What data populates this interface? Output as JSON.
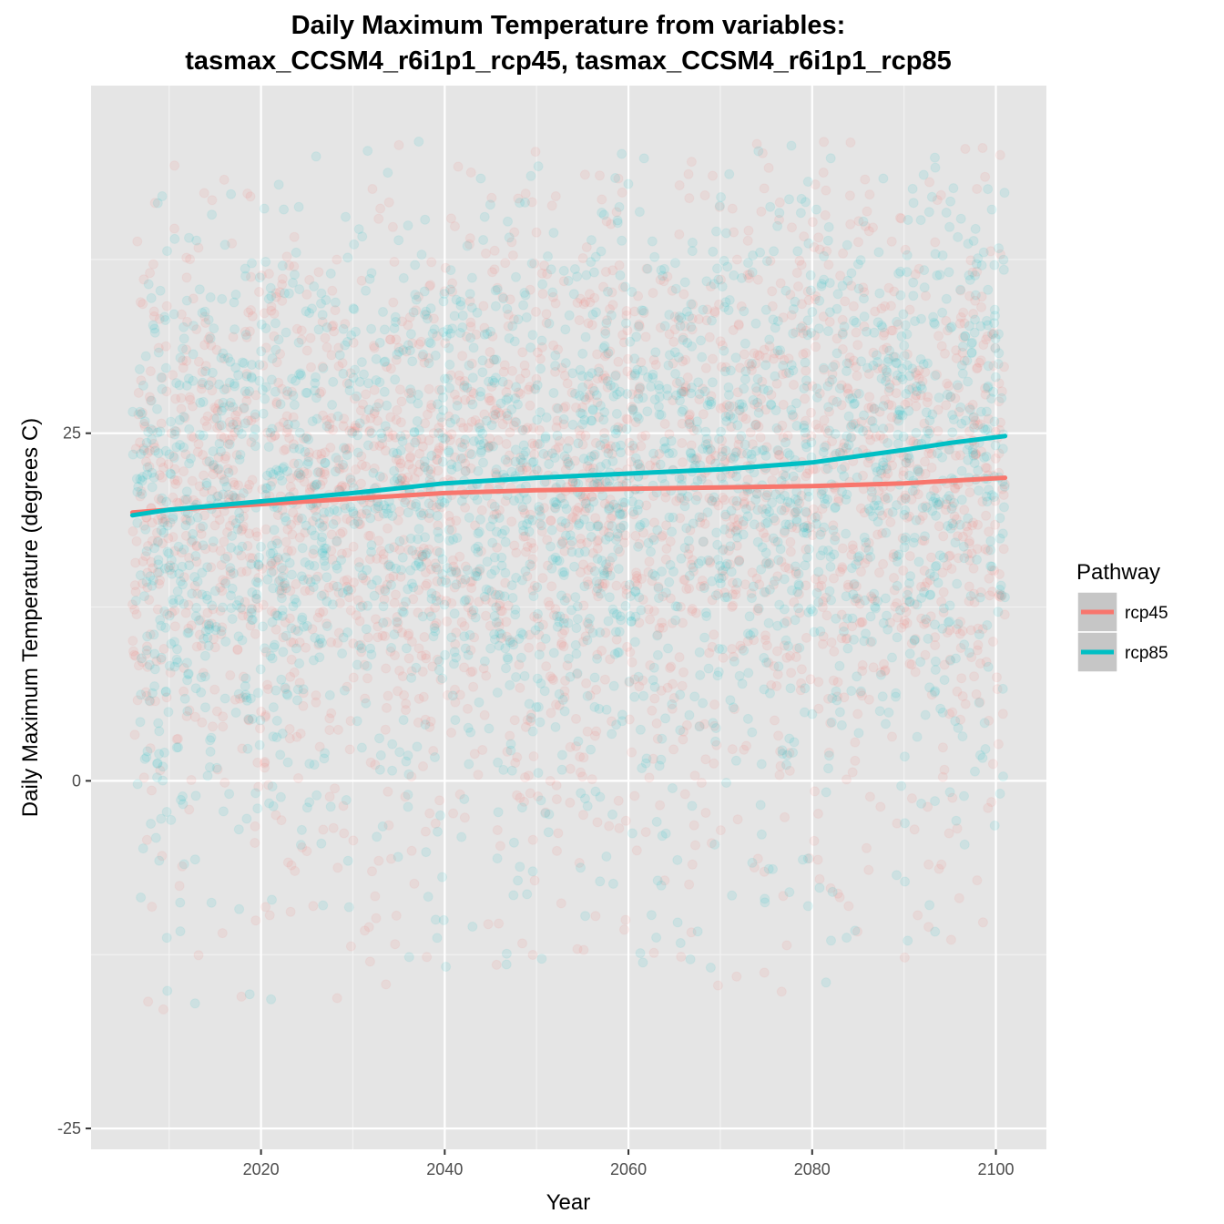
{
  "chart_data": {
    "type": "scatter",
    "title_lines": [
      "Daily Maximum Temperature from variables:",
      "tasmax_CCSM4_r6i1p1_rcp45, tasmax_CCSM4_r6i1p1_rcp85"
    ],
    "xlabel": "Year",
    "ylabel": "Daily Maximum Temperature (degrees C)",
    "xlim": [
      2001.5,
      2105.5
    ],
    "ylim": [
      -26.5,
      50
    ],
    "x_ticks": [
      2020,
      2040,
      2060,
      2080,
      2100
    ],
    "x_tick_labels": [
      "2020",
      "2040",
      "2060",
      "2080",
      "2100"
    ],
    "y_ticks": [
      -25,
      0,
      25
    ],
    "y_tick_labels": [
      "-25",
      "0",
      "25"
    ],
    "grid": true,
    "background": "#e5e5e5",
    "point_alpha": 0.1,
    "points_note": "one dot per day per pathway, years 2006-2100, values roughly between -22 and 46 degrees C",
    "point_range": {
      "x": [
        2006,
        2101
      ],
      "y": [
        -22,
        46
      ]
    },
    "legend": {
      "title": "Pathway",
      "position": "right",
      "entries": [
        {
          "label": "rcp45",
          "color": "#f8766d"
        },
        {
          "label": "rcp85",
          "color": "#00bfc4"
        }
      ]
    },
    "series": [
      {
        "name": "rcp45",
        "color": "#f8766d",
        "smooth_line": {
          "x": [
            2006,
            2010,
            2020,
            2030,
            2040,
            2050,
            2060,
            2070,
            2080,
            2090,
            2101
          ],
          "y": [
            19.3,
            19.5,
            19.9,
            20.3,
            20.7,
            20.9,
            21.0,
            21.1,
            21.2,
            21.4,
            21.8
          ]
        }
      },
      {
        "name": "rcp85",
        "color": "#00bfc4",
        "smooth_line": {
          "x": [
            2006,
            2010,
            2020,
            2030,
            2040,
            2050,
            2060,
            2070,
            2080,
            2090,
            2095,
            2101
          ],
          "y": [
            19.1,
            19.5,
            20.1,
            20.7,
            21.4,
            21.8,
            22.1,
            22.4,
            22.9,
            23.8,
            24.3,
            24.8
          ]
        }
      }
    ]
  }
}
